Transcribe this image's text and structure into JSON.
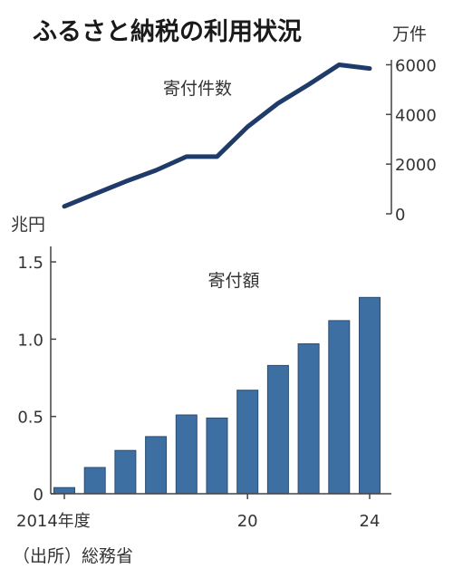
{
  "title": "ふるさと納税の利用状況",
  "source": "（出所）総務省",
  "colors": {
    "line": "#1f3b6a",
    "bar": "#3d6fa3",
    "bar_stroke": "#2a4d75",
    "axis": "#444444"
  },
  "chart_data": [
    {
      "type": "line",
      "label": "寄付件数",
      "unit": "万件",
      "x": [
        2014,
        2015,
        2016,
        2017,
        2018,
        2019,
        2020,
        2021,
        2022,
        2023,
        2024
      ],
      "values": [
        300,
        800,
        1300,
        1750,
        2300,
        2300,
        3500,
        4450,
        5200,
        6000,
        5850
      ],
      "ylim": [
        0,
        6200
      ],
      "yticks": [
        0,
        2000,
        4000,
        6000
      ],
      "ytick_labels": [
        "0",
        "2000",
        "4000",
        "6000"
      ],
      "axis_side": "right"
    },
    {
      "type": "bar",
      "label": "寄付額",
      "unit": "兆円",
      "x": [
        2014,
        2015,
        2016,
        2017,
        2018,
        2019,
        2020,
        2021,
        2022,
        2023,
        2024
      ],
      "values": [
        0.04,
        0.17,
        0.28,
        0.37,
        0.51,
        0.49,
        0.67,
        0.83,
        0.97,
        1.12,
        1.27
      ],
      "ylim": [
        0,
        1.6
      ],
      "yticks": [
        0,
        0.5,
        1.0,
        1.5
      ],
      "ytick_labels": [
        "0",
        "0.5",
        "1.0",
        "1.5"
      ],
      "xtick_labels": [
        {
          "year": 2014,
          "text": "2014年度"
        },
        {
          "year": 2020,
          "text": "20"
        },
        {
          "year": 2024,
          "text": "24"
        }
      ],
      "axis_side": "left"
    }
  ]
}
